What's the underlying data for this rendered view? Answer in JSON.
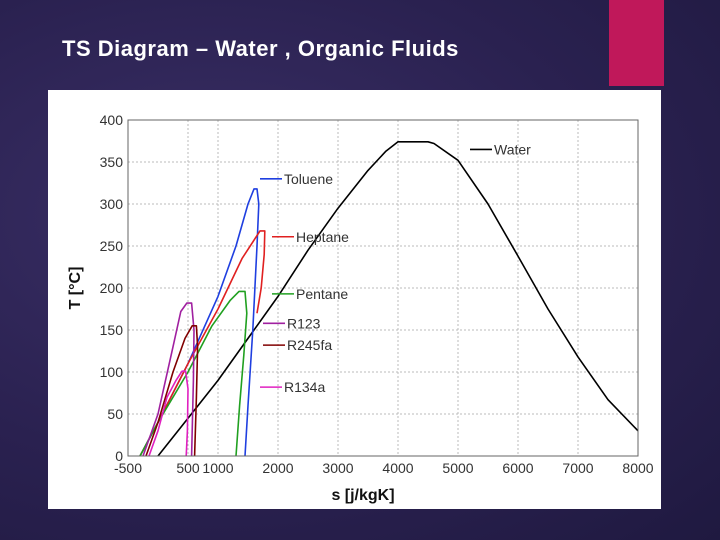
{
  "slide": {
    "title": "TS Diagram – Water , Organic Fluids",
    "accent_color": "#c0185a"
  },
  "chart_data": {
    "type": "line",
    "title": "",
    "xlabel": "s [j/kgK]",
    "ylabel": "T [°C]",
    "xlim": [
      -500,
      8000
    ],
    "ylim": [
      0,
      400
    ],
    "x_ticks": [
      -500,
      500,
      1000,
      2000,
      3000,
      4000,
      5000,
      6000,
      7000,
      8000
    ],
    "x_tick_labels": [
      "-500",
      "500",
      "1000",
      "2000",
      "3000",
      "4000",
      "5000",
      "6000",
      "7000",
      "8000"
    ],
    "y_ticks": [
      0,
      50,
      100,
      150,
      200,
      250,
      300,
      350,
      400
    ],
    "y_tick_labels": [
      "0",
      "50",
      "100",
      "150",
      "200",
      "250",
      "300",
      "350",
      "400"
    ],
    "grid": true,
    "series": [
      {
        "name": "Water",
        "color": "#000000",
        "points": [
          [
            0,
            0
          ],
          [
            500,
            45
          ],
          [
            1000,
            90
          ],
          [
            1500,
            140
          ],
          [
            2000,
            190
          ],
          [
            2500,
            245
          ],
          [
            3000,
            295
          ],
          [
            3500,
            340
          ],
          [
            3800,
            363
          ],
          [
            4000,
            374
          ],
          [
            4500,
            374
          ],
          [
            4600,
            372
          ],
          [
            5000,
            352
          ],
          [
            5500,
            300
          ],
          [
            6000,
            238
          ],
          [
            6500,
            175
          ],
          [
            7000,
            118
          ],
          [
            7500,
            67
          ],
          [
            8000,
            30
          ]
        ]
      },
      {
        "name": "Toluene",
        "color": "#1f3fe0",
        "points": [
          [
            -300,
            0
          ],
          [
            0,
            40
          ],
          [
            500,
            110
          ],
          [
            1000,
            190
          ],
          [
            1300,
            250
          ],
          [
            1500,
            300
          ],
          [
            1600,
            318
          ],
          [
            1650,
            318
          ],
          [
            1680,
            300
          ],
          [
            1650,
            250
          ],
          [
            1580,
            150
          ],
          [
            1500,
            60
          ],
          [
            1450,
            0
          ]
        ]
      },
      {
        "name": "Heptane",
        "color": "#e02020",
        "points": [
          [
            -300,
            0
          ],
          [
            0,
            40
          ],
          [
            500,
            110
          ],
          [
            1000,
            175
          ],
          [
            1400,
            235
          ],
          [
            1700,
            268
          ],
          [
            1780,
            268
          ],
          [
            1770,
            240
          ],
          [
            1720,
            200
          ],
          [
            1650,
            170
          ]
        ]
      },
      {
        "name": "Pentane",
        "color": "#20a020",
        "points": [
          [
            -300,
            0
          ],
          [
            0,
            40
          ],
          [
            500,
            100
          ],
          [
            900,
            155
          ],
          [
            1200,
            185
          ],
          [
            1350,
            196
          ],
          [
            1450,
            196
          ],
          [
            1480,
            170
          ],
          [
            1430,
            120
          ],
          [
            1360,
            60
          ],
          [
            1300,
            0
          ]
        ]
      },
      {
        "name": "R123",
        "color": "#a020a0",
        "points": [
          [
            -250,
            0
          ],
          [
            0,
            50
          ],
          [
            250,
            130
          ],
          [
            380,
            172
          ],
          [
            480,
            182
          ],
          [
            560,
            182
          ],
          [
            600,
            150
          ],
          [
            590,
            90
          ],
          [
            570,
            30
          ],
          [
            560,
            0
          ]
        ]
      },
      {
        "name": "R245fa",
        "color": "#800000",
        "points": [
          [
            -200,
            0
          ],
          [
            0,
            40
          ],
          [
            250,
            100
          ],
          [
            450,
            140
          ],
          [
            570,
            155
          ],
          [
            640,
            155
          ],
          [
            660,
            130
          ],
          [
            640,
            70
          ],
          [
            610,
            0
          ]
        ]
      },
      {
        "name": "R134a",
        "color": "#e020c0",
        "points": [
          [
            -150,
            0
          ],
          [
            0,
            30
          ],
          [
            150,
            70
          ],
          [
            300,
            90
          ],
          [
            400,
            101
          ],
          [
            460,
            101
          ],
          [
            500,
            80
          ],
          [
            490,
            30
          ],
          [
            470,
            0
          ]
        ]
      }
    ],
    "legend": [
      {
        "name": "Water",
        "color": "#000000",
        "at": [
          5200,
          365
        ]
      },
      {
        "name": "Toluene",
        "color": "#1f3fe0",
        "at": [
          1700,
          330
        ]
      },
      {
        "name": "Heptane",
        "color": "#e02020",
        "at": [
          1900,
          261
        ]
      },
      {
        "name": "Pentane",
        "color": "#20a020",
        "at": [
          1900,
          193
        ]
      },
      {
        "name": "R123",
        "color": "#a020a0",
        "at": [
          1750,
          158
        ]
      },
      {
        "name": "R245fa",
        "color": "#800000",
        "at": [
          1750,
          132
        ]
      },
      {
        "name": "R134a",
        "color": "#e020c0",
        "at": [
          1700,
          82
        ]
      }
    ]
  }
}
